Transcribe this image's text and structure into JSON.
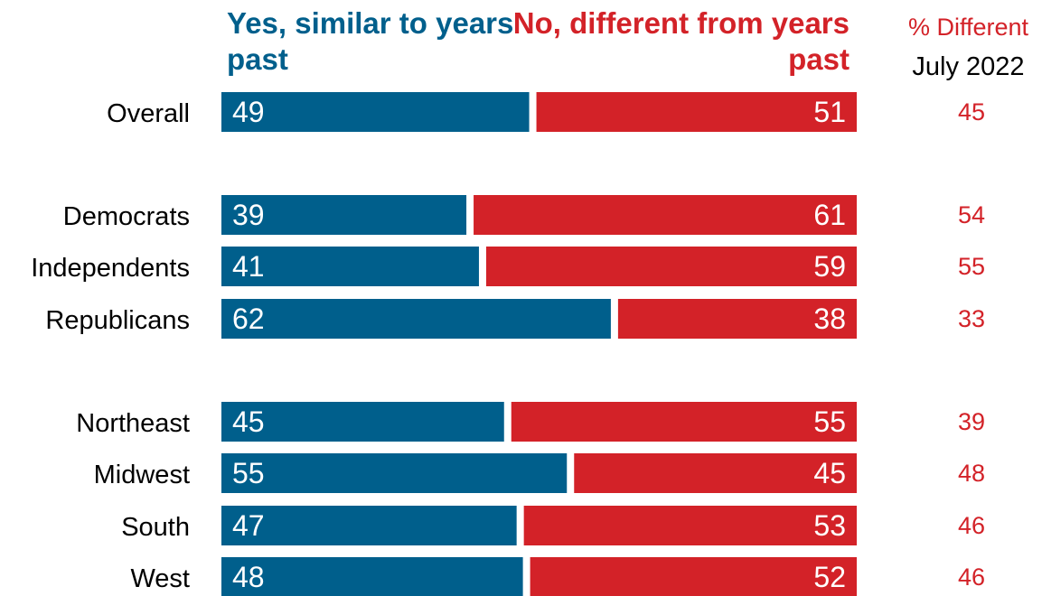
{
  "chart_data": {
    "type": "bar",
    "orientation": "horizontal",
    "stacked": true,
    "series_headers": {
      "yes": "Yes, similar to years past",
      "no": "No, different from years past"
    },
    "extra_column": {
      "title": "% Different",
      "subtitle": "July 2022"
    },
    "categories": [
      "Overall",
      "Democrats",
      "Independents",
      "Republicans",
      "Northeast",
      "Midwest",
      "South",
      "West"
    ],
    "groups": [
      [
        "Overall"
      ],
      [
        "Democrats",
        "Independents",
        "Republicans"
      ],
      [
        "Northeast",
        "Midwest",
        "South",
        "West"
      ]
    ],
    "series": [
      {
        "name": "Yes, similar to years past",
        "values": [
          49,
          39,
          41,
          62,
          45,
          55,
          47,
          48
        ]
      },
      {
        "name": "No, different from years past",
        "values": [
          51,
          61,
          59,
          38,
          55,
          45,
          53,
          52
        ]
      }
    ],
    "july_2022_different": [
      45,
      54,
      55,
      33,
      39,
      48,
      46,
      46
    ],
    "xlim": [
      0,
      100
    ],
    "colors": {
      "yes": "#005f8c",
      "no": "#d32228",
      "label": "#000000",
      "bar_text": "#ffffff"
    }
  }
}
